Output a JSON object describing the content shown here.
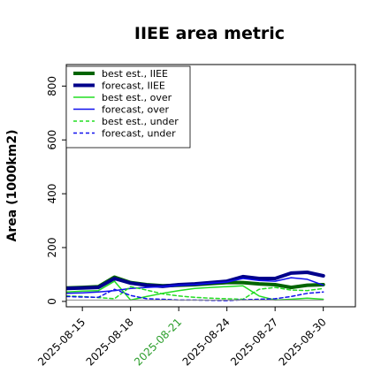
{
  "chart_data": {
    "type": "line",
    "title": "IIEE area metric",
    "xlabel": "",
    "ylabel": "Area (1000km2)",
    "ylim": [
      -20,
      880
    ],
    "xlim": [
      -1,
      17
    ],
    "y_ticks": [
      0,
      200,
      400,
      600,
      800
    ],
    "x_ticks": [
      {
        "x": 0,
        "label": "2025-08-15",
        "color": "#000000"
      },
      {
        "x": 3,
        "label": "2025-08-18",
        "color": "#000000"
      },
      {
        "x": 6,
        "label": "2025-08-21",
        "color": "#2a9d2a"
      },
      {
        "x": 9,
        "label": "2025-08-24",
        "color": "#000000"
      },
      {
        "x": 12,
        "label": "2025-08-27",
        "color": "#000000"
      },
      {
        "x": 15,
        "label": "2025-08-30",
        "color": "#000000"
      }
    ],
    "legend_position": "top-left",
    "grid": false,
    "series": [
      {
        "name": "best est., IIEE",
        "color": "#006400",
        "style": "solid",
        "width": 4,
        "x": [
          -1,
          0,
          1,
          2,
          3,
          4,
          5,
          6,
          7,
          8,
          9,
          10,
          11,
          12,
          13,
          14,
          15
        ],
        "y": [
          50,
          52,
          55,
          90,
          70,
          62,
          58,
          60,
          62,
          66,
          70,
          70,
          65,
          62,
          52,
          60,
          62
        ]
      },
      {
        "name": "forecast, IIEE",
        "color": "#00008b",
        "style": "solid",
        "width": 4,
        "x": [
          -1,
          0,
          1,
          2,
          3,
          4,
          5,
          6,
          7,
          8,
          9,
          10,
          11,
          12,
          13,
          14,
          15
        ],
        "y": [
          48,
          50,
          52,
          85,
          68,
          60,
          56,
          62,
          65,
          70,
          75,
          92,
          85,
          85,
          105,
          108,
          95
        ]
      },
      {
        "name": "best est., over",
        "color": "#22dd22",
        "style": "solid",
        "width": 1.5,
        "x": [
          -1,
          0,
          1,
          2,
          3,
          4,
          5,
          6,
          7,
          8,
          9,
          10,
          11,
          12,
          13,
          14,
          15
        ],
        "y": [
          35,
          38,
          40,
          75,
          5,
          18,
          30,
          40,
          48,
          52,
          55,
          58,
          20,
          5,
          8,
          12,
          8
        ]
      },
      {
        "name": "forecast, over",
        "color": "#1010ee",
        "style": "solid",
        "width": 1.5,
        "x": [
          -1,
          0,
          1,
          2,
          3,
          4,
          5,
          6,
          7,
          8,
          9,
          10,
          11,
          12,
          13,
          14,
          15
        ],
        "y": [
          30,
          32,
          35,
          40,
          48,
          52,
          55,
          60,
          62,
          68,
          72,
          85,
          78,
          75,
          88,
          82,
          60
        ]
      },
      {
        "name": "best est., under",
        "color": "#22dd22",
        "style": "dashed",
        "width": 1.5,
        "x": [
          -1,
          0,
          1,
          2,
          3,
          4,
          5,
          6,
          7,
          8,
          9,
          10,
          11,
          12,
          13,
          14,
          15
        ],
        "y": [
          20,
          18,
          14,
          10,
          55,
          42,
          28,
          20,
          15,
          12,
          10,
          8,
          45,
          52,
          42,
          40,
          48
        ]
      },
      {
        "name": "forecast, under",
        "color": "#1010ee",
        "style": "dashed",
        "width": 1.5,
        "x": [
          -1,
          0,
          1,
          2,
          3,
          4,
          5,
          6,
          7,
          8,
          9,
          10,
          11,
          12,
          13,
          14,
          15
        ],
        "y": [
          18,
          16,
          15,
          45,
          22,
          10,
          8,
          5,
          5,
          4,
          3,
          6,
          8,
          10,
          18,
          30,
          35
        ]
      },
      {
        "name": "",
        "color": "#888888",
        "style": "solid",
        "width": 1,
        "x": [
          -1,
          0,
          1,
          2,
          3,
          4,
          5,
          6,
          7,
          8,
          9,
          10,
          11,
          12,
          13,
          14,
          15
        ],
        "y": [
          5,
          5,
          5,
          5,
          5,
          5,
          5,
          5,
          5,
          5,
          5,
          5,
          5,
          5,
          5,
          5,
          5
        ]
      }
    ]
  }
}
